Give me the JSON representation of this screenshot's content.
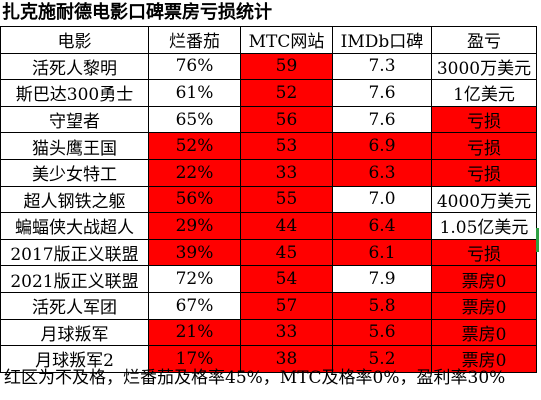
{
  "title": "扎克施耐德电影口碑票房亏损统计",
  "columns": [
    "电影",
    "烂番茄",
    "MTC网站",
    "IMDb口碑",
    "盈亏"
  ],
  "rows": [
    {
      "film": "活死人黎明",
      "rt": "76%",
      "mtc": "59",
      "imdb": "7.3",
      "profit": "3000万美元"
    },
    {
      "film": "斯巴达300勇士",
      "rt": "61%",
      "mtc": "52",
      "imdb": "7.6",
      "profit": "1亿美元"
    },
    {
      "film": "守望者",
      "rt": "65%",
      "mtc": "56",
      "imdb": "7.6",
      "profit": "亏损"
    },
    {
      "film": "猫头鹰王国",
      "rt": "52%",
      "mtc": "53",
      "imdb": "6.9",
      "profit": "亏损"
    },
    {
      "film": "美少女特工",
      "rt": "22%",
      "mtc": "33",
      "imdb": "6.3",
      "profit": "亏损"
    },
    {
      "film": "超人钢铁之躯",
      "rt": "56%",
      "mtc": "55",
      "imdb": "7.0",
      "profit": "4000万美元"
    },
    {
      "film": "蝙蝠侠大战超人",
      "rt": "29%",
      "mtc": "44",
      "imdb": "6.4",
      "profit": "1.05亿美元"
    },
    {
      "film": "2017版正义联盟",
      "rt": "39%",
      "mtc": "45",
      "imdb": "6.1",
      "profit": "亏损"
    },
    {
      "film": "2021版正义联盟",
      "rt": "72%",
      "mtc": "54",
      "imdb": "7.9",
      "profit": "票房0"
    },
    {
      "film": "活死人军团",
      "rt": "67%",
      "mtc": "57",
      "imdb": "5.8",
      "profit": "票房0"
    },
    {
      "film": "月球叛军",
      "rt": "21%",
      "mtc": "33",
      "imdb": "5.6",
      "profit": "票房0"
    },
    {
      "film": "月球叛军2",
      "rt": "17%",
      "mtc": "38",
      "imdb": "5.2",
      "profit": "票房0"
    }
  ],
  "footer": "红区为不及格，烂番茄及格率45%，MTC及格率0%，盈利率30%",
  "colors": {
    "fail_red": "#ff0000",
    "selection_mark": "#2ea043"
  }
}
